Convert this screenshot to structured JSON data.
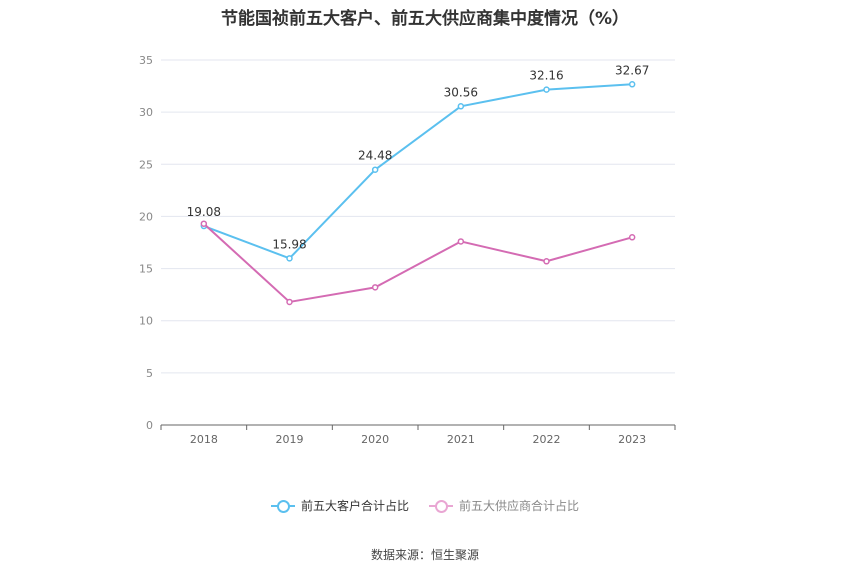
{
  "chart_data": {
    "type": "line",
    "title": "节能国祯前五大客户、前五大供应商集中度情况（%）",
    "categories": [
      "2018",
      "2019",
      "2020",
      "2021",
      "2022",
      "2023"
    ],
    "ylim": [
      0,
      35
    ],
    "yticks": [
      "0",
      "5",
      "10",
      "15",
      "20",
      "25",
      "30",
      "35"
    ],
    "grid": true,
    "legend_position": "bottom",
    "series": [
      {
        "name": "前五大客户合计占比",
        "color": "#5bc0ef",
        "values": [
          19.08,
          15.98,
          24.48,
          30.56,
          32.16,
          32.67
        ],
        "labels": [
          "19.08",
          "15.98",
          "24.48",
          "30.56",
          "32.16",
          "32.67"
        ]
      },
      {
        "name": "前五大供应商合计占比",
        "color": "#d46bb3",
        "values": [
          19.3,
          11.8,
          13.2,
          17.6,
          15.7,
          18.0
        ],
        "labels": []
      }
    ]
  },
  "source": "数据来源：恒生聚源"
}
